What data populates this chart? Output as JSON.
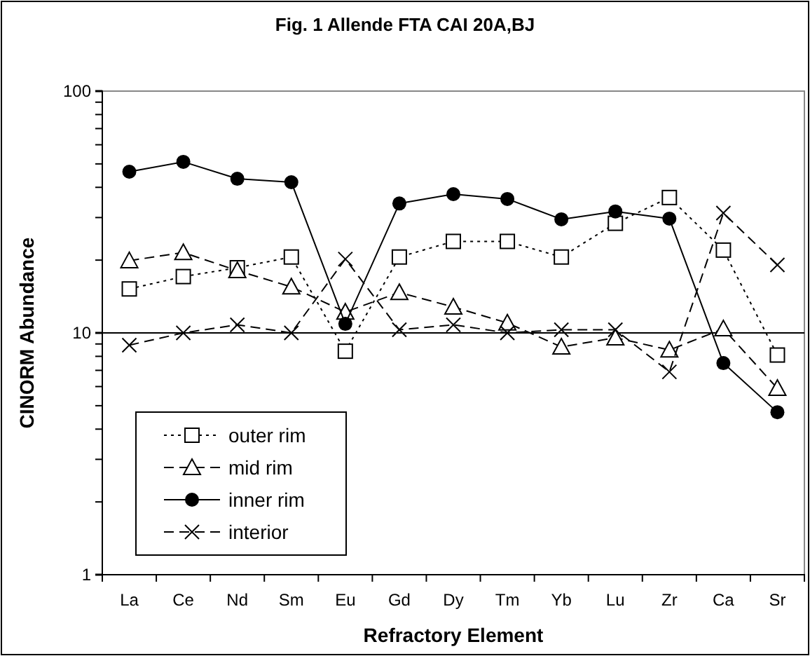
{
  "chart_data": {
    "type": "line",
    "title": "Fig. 1    Allende  FTA  CAI  20A,BJ",
    "xlabel": "Refractory Element",
    "ylabel": "CINORM Abundance",
    "categories": [
      "La",
      "Ce",
      "Nd",
      "Sm",
      "Eu",
      "Gd",
      "Dy",
      "Tm",
      "Yb",
      "Lu",
      "Zr",
      "Ca",
      "Sr"
    ],
    "log": true,
    "ylim": [
      1,
      100
    ],
    "yticks": [
      1,
      {
        "value": 2,
        "label": null
      },
      {
        "value": 3,
        "label": null
      },
      {
        "value": 4,
        "label": null
      },
      {
        "value": 5,
        "label": null
      },
      {
        "value": 6,
        "label": null
      },
      {
        "value": 7,
        "label": null
      },
      {
        "value": 8,
        "label": null
      },
      {
        "value": 9,
        "label": null
      },
      10,
      {
        "value": 20,
        "label": null
      },
      {
        "value": 30,
        "label": null
      },
      {
        "value": 40,
        "label": null
      },
      {
        "value": 50,
        "label": null
      },
      {
        "value": 60,
        "label": null
      },
      {
        "value": 70,
        "label": null
      },
      {
        "value": 80,
        "label": null
      },
      {
        "value": 90,
        "label": null
      },
      100
    ],
    "ref_lines": [
      {
        "axis": "y",
        "value": 10,
        "label": null,
        "color": "#000000",
        "line_style": "solid"
      }
    ],
    "grid": false,
    "legend": "bottom left",
    "series": [
      {
        "name": "outer rim",
        "color": "#000000",
        "marker": "square",
        "line_style": "dotted",
        "values": [
          15.2,
          17.1,
          18.6,
          20.6,
          8.4,
          20.6,
          23.9,
          23.9,
          20.6,
          28.4,
          36.3,
          22,
          8.1
        ]
      },
      {
        "name": "mid rim",
        "color": "#000000",
        "marker": "triangle",
        "line_style": "dashed",
        "values": [
          19.9,
          21.5,
          18.1,
          15.5,
          12.2,
          14.7,
          12.8,
          11,
          8.75,
          9.55,
          8.5,
          10.4,
          5.9
        ]
      },
      {
        "name": "inner rim",
        "color": "#000000",
        "marker": "circle",
        "line_style": "solid",
        "values": [
          46.4,
          51,
          43.4,
          42,
          10.9,
          34.3,
          37.5,
          35.8,
          29.5,
          31.8,
          29.7,
          7.5,
          4.7
        ]
      },
      {
        "name": "interior",
        "color": "#000000",
        "marker": "cross",
        "line_style": "dashed",
        "values": [
          8.9,
          10,
          10.8,
          10,
          20.2,
          10.3,
          10.8,
          10,
          10.3,
          10.3,
          6.9,
          31.3,
          19.1
        ]
      }
    ]
  }
}
